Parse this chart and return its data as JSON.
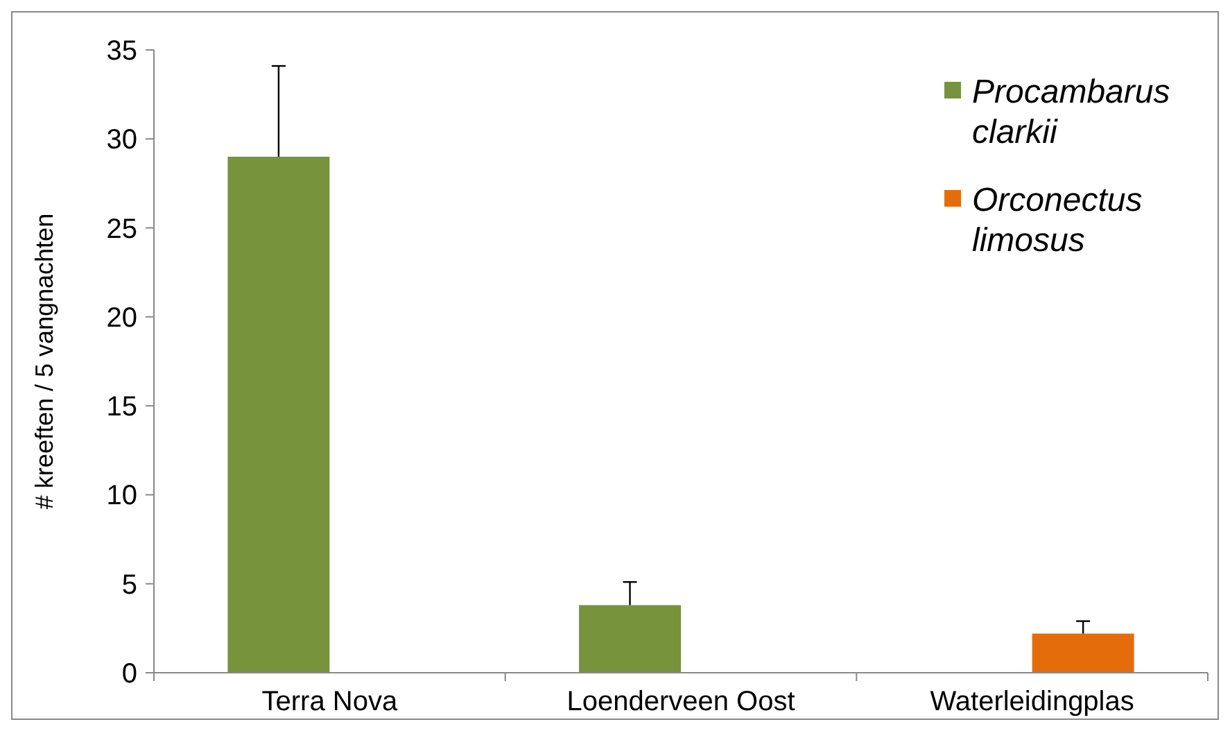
{
  "chart_data": {
    "type": "bar",
    "ylabel": "# kreeften / 5 vangnachten",
    "categories": [
      "Terra Nova",
      "Loenderveen Oost",
      "Waterleidingplas"
    ],
    "series": [
      {
        "name": "Procambarus clarkii",
        "color": "#77933c",
        "values": [
          29,
          3.8,
          null
        ],
        "errors": [
          [
            29,
            34.1
          ],
          [
            3.8,
            5.1
          ],
          null
        ]
      },
      {
        "name": "Orconectus limosus",
        "color": "#e46c0a",
        "values": [
          null,
          null,
          2.2
        ],
        "errors": [
          null,
          null,
          [
            2.2,
            2.9
          ]
        ]
      }
    ],
    "ylim": [
      0,
      35
    ],
    "yticks": [
      0,
      5,
      10,
      15,
      20,
      25,
      30,
      35
    ],
    "grid": false,
    "legend": "top right"
  }
}
